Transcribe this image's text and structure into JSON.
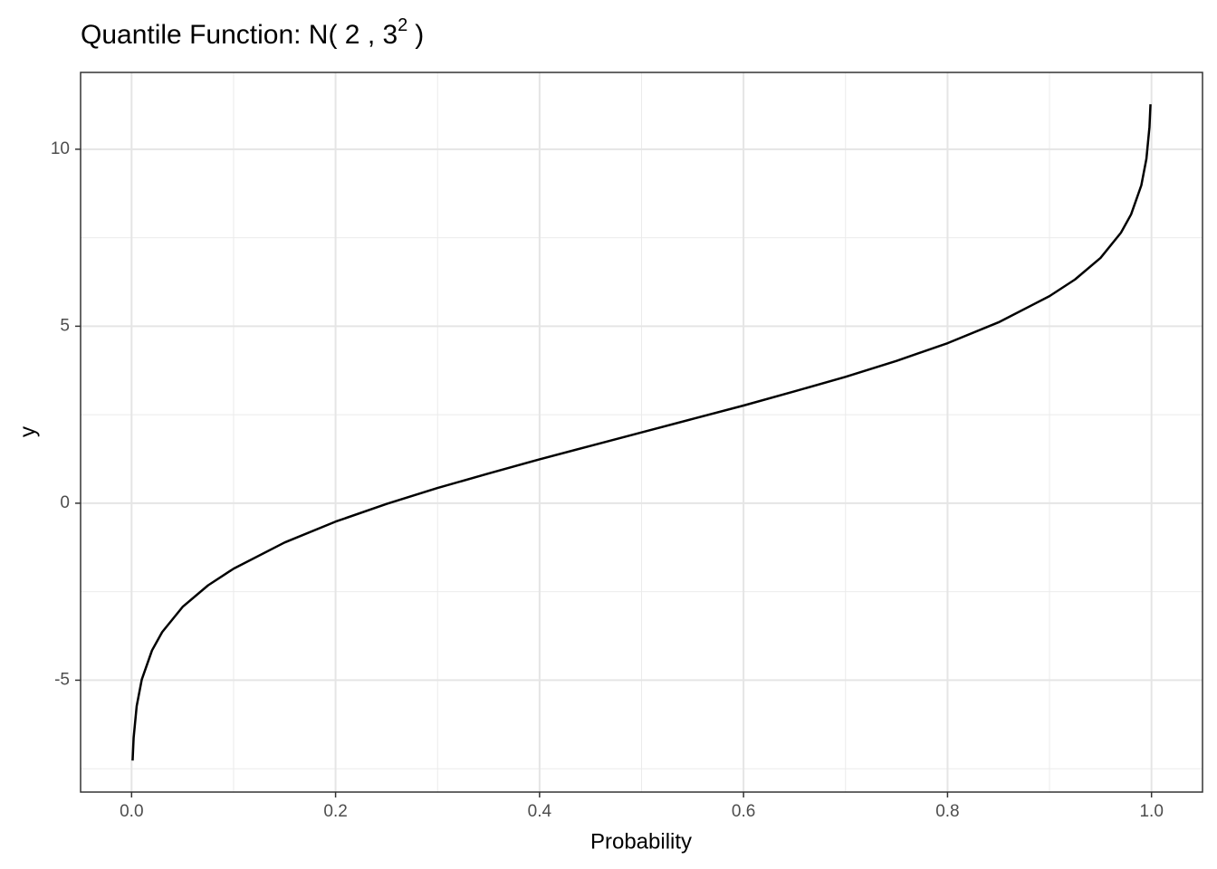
{
  "chart_data": {
    "type": "line",
    "title": {
      "text": "Quantile Function: N( 2 , 3",
      "superscript": "2",
      "suffix": ")"
    },
    "x_label": "Probability",
    "y_label": "y",
    "x": [
      0.001,
      0.002,
      0.005,
      0.01,
      0.02,
      0.03,
      0.05,
      0.075,
      0.1,
      0.15,
      0.2,
      0.25,
      0.3,
      0.35,
      0.4,
      0.45,
      0.5,
      0.55,
      0.6,
      0.65,
      0.7,
      0.75,
      0.8,
      0.85,
      0.9,
      0.925,
      0.95,
      0.97,
      0.98,
      0.99,
      0.995,
      0.998,
      0.999
    ],
    "values": [
      -7.27,
      -6.63,
      -5.73,
      -4.98,
      -4.16,
      -3.64,
      -2.93,
      -2.32,
      -1.85,
      -1.11,
      -0.52,
      -0.02,
      0.43,
      0.84,
      1.24,
      1.62,
      2,
      2.38,
      2.76,
      3.16,
      3.57,
      4.02,
      4.52,
      5.11,
      5.85,
      6.32,
      6.93,
      7.64,
      8.16,
      8.98,
      9.73,
      10.63,
      11.27
    ],
    "color": "#000000",
    "xlim": [
      -0.05,
      1.05
    ],
    "ylim": [
      -8.16,
      12.17
    ],
    "xticks": [
      {
        "value": 0,
        "label": "0.0"
      },
      0.2,
      0.4,
      0.6,
      0.8,
      {
        "value": 1,
        "label": "1.0"
      }
    ],
    "yticks": [
      -5,
      0,
      5,
      10
    ],
    "x_minor_grid": [
      0.1,
      0.3,
      0.5,
      0.7,
      0.9
    ],
    "y_minor_grid": [
      -7.5,
      -2.5,
      2.5,
      7.5
    ],
    "grid": true
  }
}
